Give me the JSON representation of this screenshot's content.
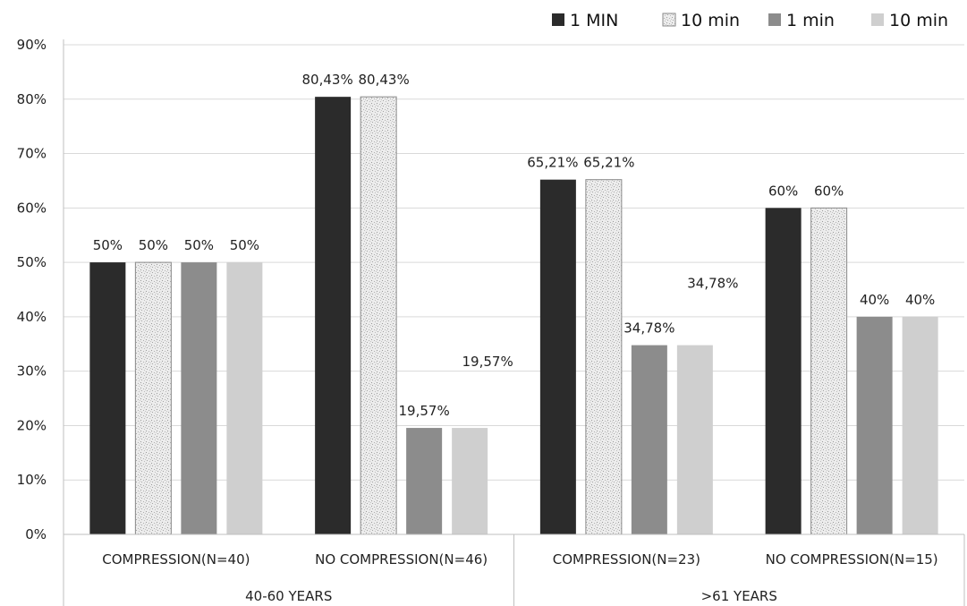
{
  "chart_data": {
    "type": "bar",
    "groups": [
      {
        "label": "40-60 YEARS",
        "categories": [
          "COMPRESSION(N=40)",
          "NO COMPRESSION(N=46)"
        ]
      },
      {
        "label": ">61 YEARS",
        "categories": [
          "COMPRESSION(N=23)",
          "NO COMPRESSION(N=15)"
        ]
      }
    ],
    "categories": [
      "COMPRESSION(N=40)",
      "NO COMPRESSION(N=46)",
      "COMPRESSION(N=23)",
      "NO COMPRESSION(N=15)"
    ],
    "series": [
      {
        "name": "1 MIN",
        "color": "#2b2b2b",
        "values": [
          50,
          80.43,
          65.21,
          60
        ],
        "labels": [
          "50%",
          "80,43%",
          "65,21%",
          "60%"
        ]
      },
      {
        "name": "10 min",
        "color": "#e9e9e9",
        "pattern": "speckled",
        "values": [
          50,
          80.43,
          65.21,
          60
        ],
        "labels": [
          "50%",
          "80,43%",
          "65,21%",
          "60%"
        ]
      },
      {
        "name": "1 min",
        "color": "#8c8c8c",
        "values": [
          50,
          19.57,
          34.78,
          40
        ],
        "labels": [
          "50%",
          "19,57%",
          "34,78%",
          "40%"
        ]
      },
      {
        "name": "10 min",
        "color": "#cfcfcf",
        "values": [
          50,
          19.57,
          34.78,
          40
        ],
        "labels": [
          "50%",
          "19,57%",
          "34,78%",
          "40%"
        ]
      }
    ],
    "yticks": [
      "0%",
      "10%",
      "20%",
      "30%",
      "40%",
      "50%",
      "60%",
      "70%",
      "80%",
      "90%"
    ],
    "ylim": [
      0,
      90
    ],
    "grid": true,
    "legend": "top-right",
    "title": "",
    "xlabel": "",
    "ylabel": ""
  }
}
